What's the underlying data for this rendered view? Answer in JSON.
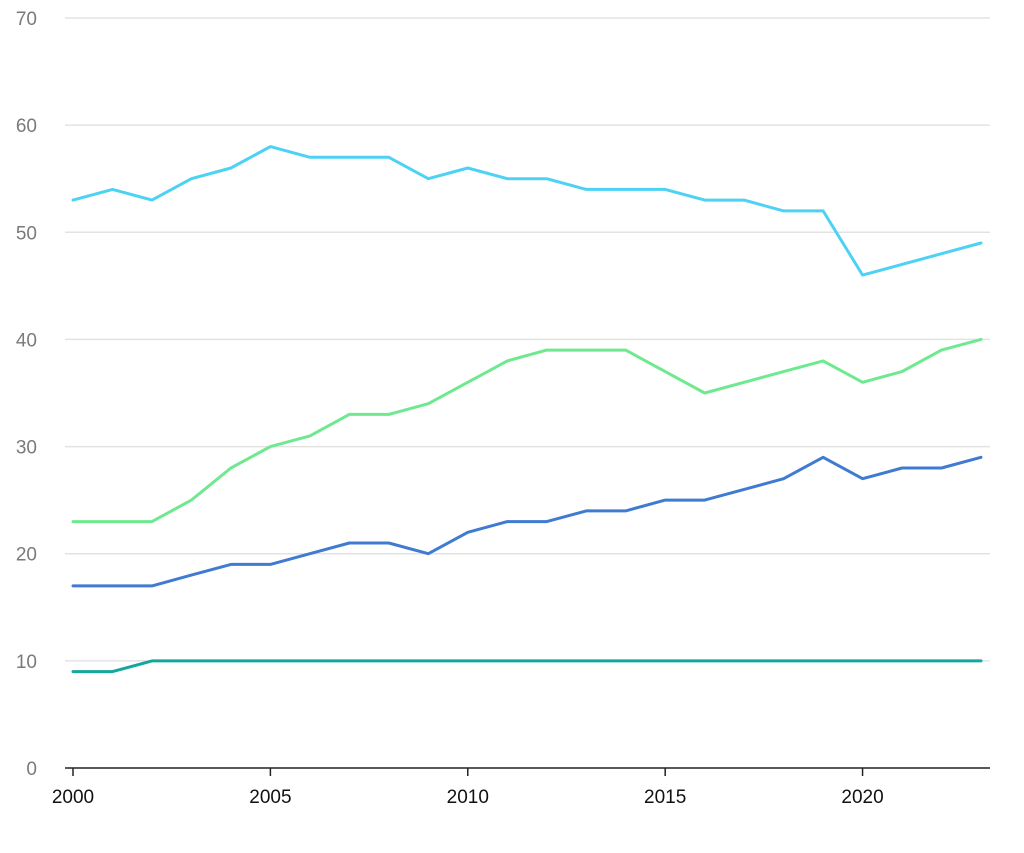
{
  "chart_data": {
    "type": "line",
    "x": [
      2000,
      2001,
      2002,
      2003,
      2004,
      2005,
      2006,
      2007,
      2008,
      2009,
      2010,
      2011,
      2012,
      2013,
      2014,
      2015,
      2016,
      2017,
      2018,
      2019,
      2020,
      2021,
      2022,
      2023
    ],
    "xticks": [
      "2000",
      "2005",
      "2010",
      "2015",
      "2020"
    ],
    "yticks": [
      "0",
      "10",
      "20",
      "30",
      "40",
      "50",
      "60",
      "70"
    ],
    "ylim": [
      0,
      70
    ],
    "xlim": [
      2000,
      2023
    ],
    "grid": true,
    "series": [
      {
        "color": "#4dd2f5",
        "values": [
          53,
          54,
          53,
          55,
          56,
          58,
          57,
          57,
          57,
          55,
          56,
          55,
          55,
          54,
          54,
          54,
          53,
          53,
          52,
          52,
          46,
          47,
          48,
          49
        ]
      },
      {
        "color": "#6fe98f",
        "values": [
          23,
          23,
          23,
          25,
          28,
          30,
          31,
          33,
          33,
          34,
          36,
          38,
          39,
          39,
          39,
          37,
          35,
          36,
          37,
          38,
          36,
          37,
          39,
          40
        ]
      },
      {
        "color": "#3f7bd1",
        "values": [
          17,
          17,
          17,
          18,
          19,
          19,
          20,
          21,
          21,
          20,
          22,
          23,
          23,
          24,
          24,
          25,
          25,
          26,
          27,
          29,
          27,
          28,
          28,
          29
        ]
      },
      {
        "color": "#13a89e",
        "values": [
          9,
          9,
          10,
          10,
          10,
          10,
          10,
          10,
          10,
          10,
          10,
          10,
          10,
          10,
          10,
          10,
          10,
          10,
          10,
          10,
          10,
          10,
          10,
          10
        ]
      }
    ]
  }
}
